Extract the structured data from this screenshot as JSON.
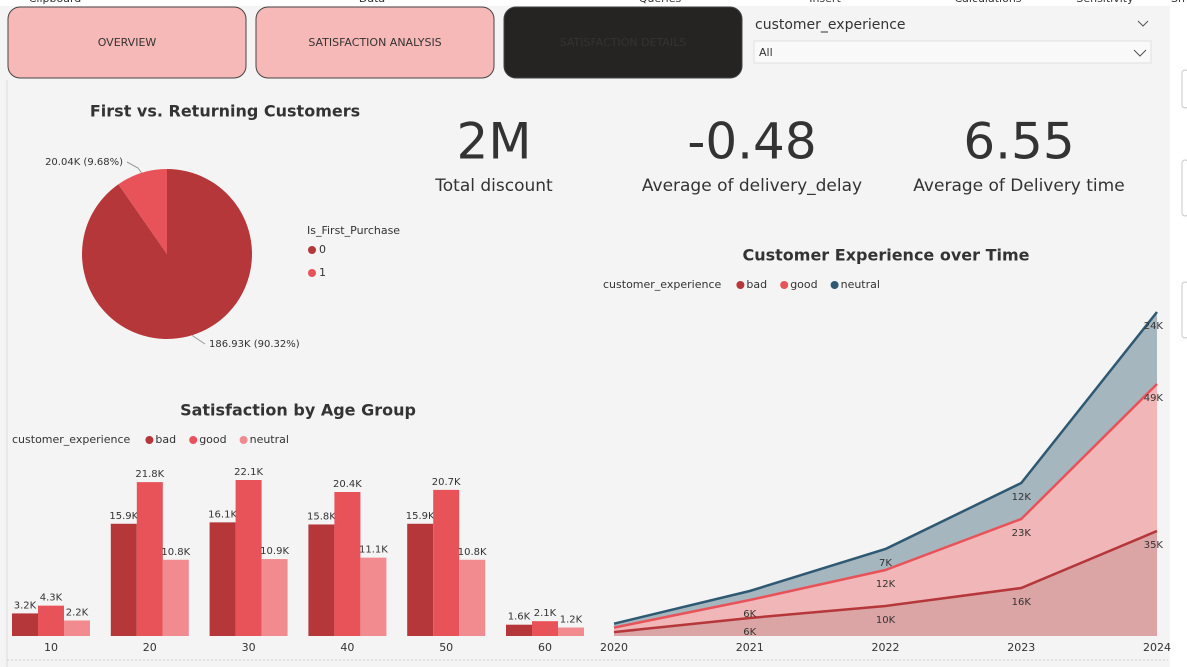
{
  "ribbon": [
    "Clipboard",
    "Data",
    "Queries",
    "Insert",
    "Calculations",
    "Sensitivity",
    "Sh"
  ],
  "nav": [
    "OVERVIEW",
    "SATISFACTION ANALYSIS",
    "SATISFACTION DETAILS"
  ],
  "slicer": {
    "label": "customer_experience",
    "value": "All"
  },
  "cards": [
    {
      "value": "2M",
      "label": "Total discount"
    },
    {
      "value": "-0.48",
      "label": "Average of delivery_delay"
    },
    {
      "value": "6.55",
      "label": "Average of Delivery time"
    }
  ],
  "chart_data": [
    {
      "type": "pie",
      "title": "First vs. Returning Customers",
      "legend_title": "Is_First_Purchase",
      "categories": [
        "0",
        "1"
      ],
      "values": [
        186930,
        20040
      ],
      "value_labels": [
        "186.93K (90.32%)",
        "20.04K (9.68%)"
      ],
      "colors": [
        "#b5373a",
        "#e8535a"
      ]
    },
    {
      "type": "bar",
      "title": "Satisfaction by Age Group",
      "legend_title": "customer_experience",
      "categories": [
        "10",
        "20",
        "30",
        "40",
        "50",
        "60"
      ],
      "series": [
        {
          "name": "bad",
          "color": "#b5373a",
          "values": [
            3200,
            15900,
            16100,
            15800,
            15900,
            1600
          ],
          "value_labels": [
            "3.2K",
            "15.9K",
            "16.1K",
            "15.8K",
            "15.9K",
            "1.6K"
          ]
        },
        {
          "name": "good",
          "color": "#e8535a",
          "values": [
            4300,
            21800,
            22100,
            20400,
            20700,
            2100
          ],
          "value_labels": [
            "4.3K",
            "21.8K",
            "22.1K",
            "20.4K",
            "20.7K",
            "2.1K"
          ]
        },
        {
          "name": "neutral",
          "color": "#f28b8f",
          "values": [
            2200,
            10800,
            10900,
            11100,
            10800,
            1200
          ],
          "value_labels": [
            "2.2K",
            "10.8K",
            "10.9K",
            "11.1K",
            "10.8K",
            "1.2K"
          ]
        }
      ]
    },
    {
      "type": "stacked_area",
      "title": "Customer Experience over Time",
      "legend_title": "customer_experience",
      "categories": [
        "2020",
        "2021",
        "2022",
        "2023",
        "2024"
      ],
      "series": [
        {
          "name": "bad",
          "color": "#b5373a",
          "fill": "#dba5a6",
          "values": [
            1300,
            6000,
            10000,
            16000,
            35000
          ],
          "value_labels": [
            null,
            "6K",
            "10K",
            "16K",
            "35K"
          ]
        },
        {
          "name": "good",
          "color": "#e8535a",
          "fill": "#f1b6b7",
          "values": [
            1500,
            6000,
            12000,
            23000,
            49000
          ],
          "value_labels": [
            null,
            "6K",
            "12K",
            "23K",
            "49K"
          ]
        },
        {
          "name": "neutral",
          "color": "#2f5973",
          "fill": "#a6b6bf",
          "values": [
            1300,
            3000,
            7000,
            12000,
            24000
          ],
          "value_labels": [
            null,
            null,
            "7K",
            "12K",
            "24K"
          ]
        }
      ]
    }
  ]
}
